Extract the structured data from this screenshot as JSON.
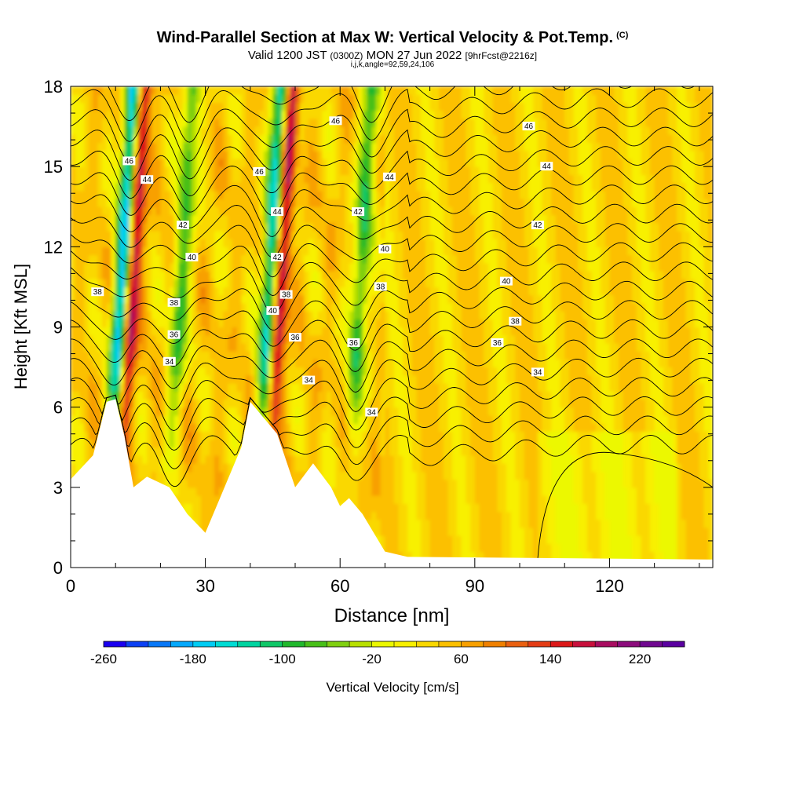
{
  "title": {
    "main": "Wind-Parallel Section at Max W: Vertical Velocity & Pot.Temp.",
    "copyright": "(C)",
    "valid_prefix": "Valid 1200 JST",
    "valid_utc": "(0300Z)",
    "valid_date": "MON 27 Jun 2022",
    "forecast": "[9hrFcst@2216z]",
    "indices": "i,j,k,angle=92,59,24,106"
  },
  "chart_data": {
    "type": "heatmap",
    "xlabel": "Distance [nm]",
    "ylabel": "Height [Kft MSL]",
    "xlim": [
      0,
      143
    ],
    "ylim": [
      0,
      18
    ],
    "x_ticks": [
      0,
      30,
      60,
      90,
      120
    ],
    "y_ticks": [
      0,
      3,
      6,
      9,
      12,
      15,
      18
    ],
    "colorbar": {
      "label": "Vertical Velocity [cm/s]",
      "min": -260,
      "max": 260,
      "step": 20,
      "tick_labels": [
        -260,
        -180,
        -100,
        -20,
        60,
        140,
        220
      ],
      "colors": [
        "#1a00f0",
        "#0c40f4",
        "#0878f8",
        "#04a8fc",
        "#00ccf4",
        "#00dcd4",
        "#00d4a0",
        "#10c868",
        "#20b82c",
        "#48c018",
        "#80d010",
        "#b8e000",
        "#ecf800",
        "#f8f000",
        "#fad800",
        "#fcc000",
        "#f8a000",
        "#f08000",
        "#ea6010",
        "#e43c14",
        "#dc1818",
        "#c8103c",
        "#a80c60",
        "#8c0c7c",
        "#700890",
        "#5a00a0"
      ]
    },
    "potential_temperature_contour_labels": [
      34,
      36,
      38,
      40,
      42,
      44,
      46
    ],
    "vertical_velocity_features": [
      {
        "x_nm": 12,
        "kind": "updraft",
        "max_cm_s": 240
      },
      {
        "x_nm": 10,
        "kind": "downdraft",
        "min_cm_s": -200
      },
      {
        "x_nm": 45,
        "kind": "updraft",
        "max_cm_s": 240
      },
      {
        "x_nm": 43,
        "kind": "downdraft",
        "min_cm_s": -180
      },
      {
        "x_nm": 23,
        "kind": "downdraft",
        "min_cm_s": -80
      },
      {
        "x_nm": 63,
        "kind": "downdraft",
        "min_cm_s": -90
      }
    ],
    "terrain_kft": [
      [
        0,
        3.3
      ],
      [
        5,
        4.2
      ],
      [
        8,
        6.2
      ],
      [
        10,
        6.3
      ],
      [
        12,
        4.9
      ],
      [
        14,
        3.0
      ],
      [
        17,
        3.4
      ],
      [
        22,
        3.0
      ],
      [
        26,
        2.0
      ],
      [
        30,
        1.3
      ],
      [
        33,
        2.5
      ],
      [
        38,
        4.5
      ],
      [
        40,
        6.2
      ],
      [
        46,
        5.0
      ],
      [
        50,
        3.0
      ],
      [
        54,
        3.9
      ],
      [
        58,
        3.0
      ],
      [
        60,
        2.3
      ],
      [
        62,
        2.6
      ],
      [
        65,
        2.0
      ],
      [
        70,
        0.6
      ],
      [
        75,
        0.4
      ],
      [
        143,
        0.3
      ]
    ],
    "isentropes": [
      {
        "theta": 34,
        "label_positions_nm": [
          [
            22,
            7.7
          ],
          [
            53,
            7.0
          ],
          [
            67,
            5.8
          ],
          [
            104,
            7.3
          ]
        ]
      },
      {
        "theta": 36,
        "label_positions_nm": [
          [
            23,
            8.7
          ],
          [
            50,
            8.6
          ],
          [
            63,
            8.4
          ],
          [
            95,
            8.4
          ]
        ]
      },
      {
        "theta": 38,
        "label_positions_nm": [
          [
            6,
            10.3
          ],
          [
            23,
            9.9
          ],
          [
            48,
            10.2
          ],
          [
            69,
            10.5
          ],
          [
            99,
            9.2
          ]
        ]
      },
      {
        "theta": 40,
        "label_positions_nm": [
          [
            27,
            11.6
          ],
          [
            45,
            9.6
          ],
          [
            70,
            11.9
          ],
          [
            97,
            10.7
          ]
        ]
      },
      {
        "theta": 42,
        "label_positions_nm": [
          [
            25,
            12.8
          ],
          [
            46,
            11.6
          ],
          [
            64,
            13.3
          ],
          [
            104,
            12.8
          ]
        ]
      },
      {
        "theta": 44,
        "label_positions_nm": [
          [
            17,
            14.5
          ],
          [
            46,
            13.3
          ],
          [
            71,
            14.6
          ],
          [
            106,
            15.0
          ]
        ]
      },
      {
        "theta": 46,
        "label_positions_nm": [
          [
            13,
            15.2
          ],
          [
            42,
            14.8
          ],
          [
            59,
            16.7
          ],
          [
            102,
            16.5
          ]
        ]
      }
    ]
  }
}
